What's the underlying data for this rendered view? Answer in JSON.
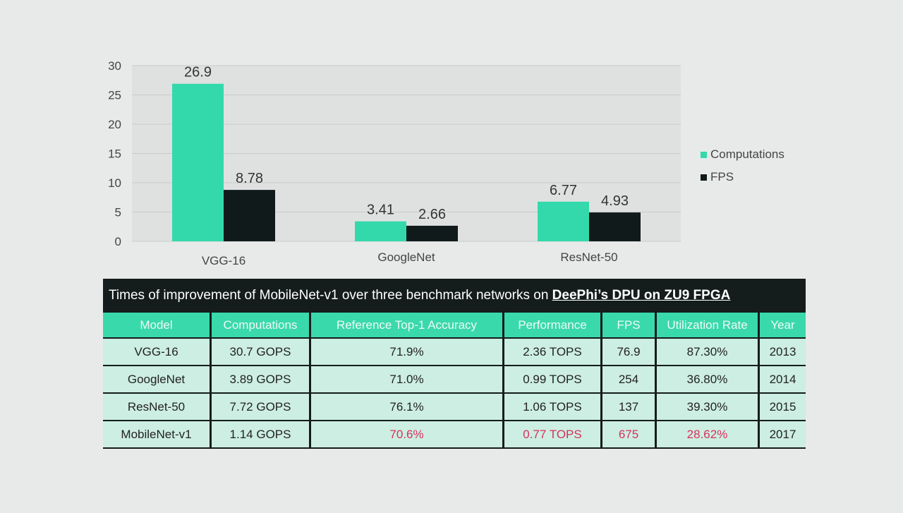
{
  "chart_data": {
    "type": "bar",
    "categories": [
      "VGG-16",
      "GoogleNet",
      "ResNet-50"
    ],
    "series": [
      {
        "name": "Computations",
        "values": [
          26.9,
          3.41,
          6.77
        ],
        "color": "#33d9ab"
      },
      {
        "name": "FPS",
        "values": [
          8.78,
          2.66,
          4.93
        ],
        "color": "#111a1a"
      }
    ],
    "ylim": [
      0,
      30
    ],
    "yticks": [
      0,
      5,
      10,
      15,
      20,
      25,
      30
    ],
    "grid": true,
    "legend": "right",
    "title": "",
    "xlabel": "",
    "ylabel": ""
  },
  "table": {
    "title_plain": "Times of improvement of MobileNet-v1 over three benchmark networks on ",
    "title_emph": "DeePhi’s DPU on ZU9 FPGA",
    "headers": [
      "Model",
      "Computations",
      "Reference Top-1 Accuracy",
      "Performance",
      "FPS",
      "Utilization Rate",
      "Year"
    ],
    "rows": [
      [
        "VGG-16",
        "30.7 GOPS",
        "71.9%",
        "2.36 TOPS",
        "76.9",
        "87.30%",
        "2013"
      ],
      [
        "GoogleNet",
        "3.89 GOPS",
        "71.0%",
        "0.99 TOPS",
        "254",
        "36.80%",
        "2014"
      ],
      [
        "ResNet-50",
        "7.72 GOPS",
        "76.1%",
        "1.06 TOPS",
        "137",
        "39.30%",
        "2015"
      ],
      [
        "MobileNet-v1",
        "1.14 GOPS",
        "70.6%",
        "0.77 TOPS",
        "675",
        "28.62%",
        "2017"
      ]
    ],
    "highlight_color": "#d8305e"
  }
}
